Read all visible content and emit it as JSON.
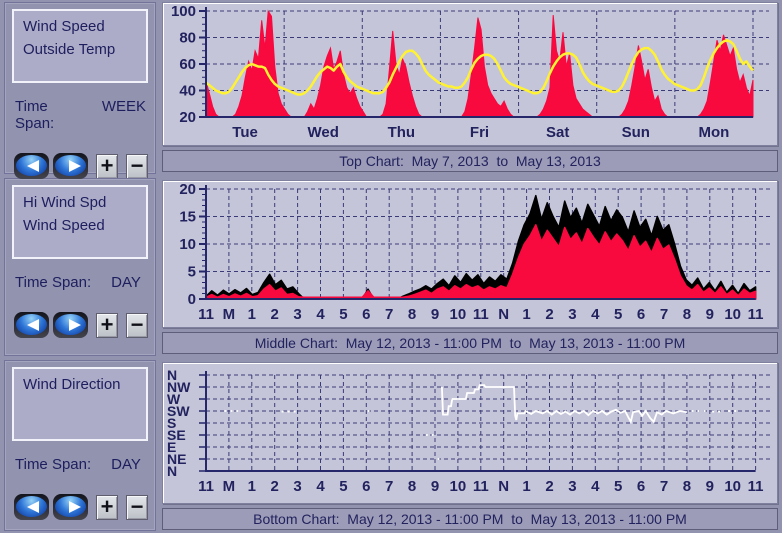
{
  "colors": {
    "window_bg": "#9193AF",
    "plot_bg": "#C5C5D9",
    "caption_bg": "#9C9CB8",
    "legend_box_bg": "#ACACC8",
    "text_navy": "#1E1E5E",
    "grid_navy": "#3A3A78",
    "series_red": "#F8093E",
    "series_yellow": "#FFF233",
    "series_black": "#000000",
    "series_white": "#FFFFFF"
  },
  "nav": {
    "back_icon": "triangle-left",
    "forward_icon": "triangle-right",
    "zoom_in_glyph": "+",
    "zoom_out_glyph": "−"
  },
  "panels": [
    {
      "legend_lines": [
        "Wind Speed",
        "Outside Temp"
      ],
      "time_span_label": "Time Span:",
      "time_span_value": "WEEK",
      "caption": "Top Chart:  May 7, 2013  to  May 13, 2013"
    },
    {
      "legend_lines": [
        "Hi Wind Spd",
        "Wind Speed"
      ],
      "time_span_label": "Time Span:",
      "time_span_value": "DAY",
      "caption": "Middle Chart:  May 12, 2013 - 11:00 PM  to  May 13, 2013 - 11:00 PM"
    },
    {
      "legend_lines": [
        "Wind Direction"
      ],
      "time_span_label": "Time Span:",
      "time_span_value": "DAY",
      "caption": "Bottom Chart:  May 12, 2013 - 11:00 PM  to  May 13, 2013 - 11:00 PM"
    }
  ],
  "chart_data": [
    {
      "type": "area",
      "title": "Top Chart: May 7, 2013 to May 13, 2013",
      "ylim": [
        20,
        100
      ],
      "y_ticks": [
        20,
        40,
        60,
        80,
        100
      ],
      "x_labels": [
        "Tue",
        "Wed",
        "Thu",
        "Fri",
        "Sat",
        "Sun",
        "Mon"
      ],
      "samples_per_day": 24,
      "grid": "dashed",
      "series": [
        {
          "name": "Wind Speed",
          "style": "area",
          "color": "#F8093E",
          "values": [
            47,
            38,
            28,
            22,
            20,
            20,
            20,
            20,
            20,
            22,
            28,
            36,
            50,
            62,
            55,
            70,
            64,
            93,
            72,
            100,
            96,
            58,
            38,
            30,
            26,
            22,
            20,
            20,
            20,
            20,
            20,
            24,
            30,
            26,
            34,
            44,
            58,
            66,
            72,
            56,
            62,
            70,
            52,
            42,
            38,
            42,
            34,
            28,
            24,
            20,
            20,
            20,
            20,
            20,
            22,
            30,
            56,
            85,
            60,
            52,
            64,
            58,
            46,
            36,
            28,
            22,
            20,
            20,
            20,
            20,
            20,
            20,
            20,
            20,
            20,
            20,
            20,
            20,
            20,
            24,
            34,
            52,
            72,
            95,
            86,
            58,
            44,
            38,
            34,
            30,
            28,
            32,
            26,
            22,
            20,
            20,
            20,
            20,
            20,
            20,
            20,
            20,
            22,
            26,
            32,
            42,
            97,
            70,
            62,
            84,
            58,
            68,
            44,
            34,
            30,
            26,
            24,
            22,
            20,
            20,
            20,
            20,
            20,
            20,
            20,
            20,
            20,
            22,
            26,
            32,
            44,
            58,
            74,
            62,
            48,
            56,
            42,
            32,
            36,
            26,
            22,
            20,
            20,
            20,
            20,
            20,
            20,
            20,
            20,
            20,
            20,
            22,
            26,
            32,
            46,
            62,
            78,
            70,
            82,
            74,
            66,
            72,
            56,
            46,
            52,
            42,
            36,
            48
          ]
        },
        {
          "name": "Outside Temp",
          "style": "line",
          "color": "#FFF233",
          "values": [
            46,
            44,
            42,
            40,
            39,
            38,
            38,
            39,
            42,
            46,
            50,
            54,
            57,
            59,
            60,
            59,
            58,
            58,
            57,
            52,
            48,
            45,
            43,
            42,
            41,
            40,
            39,
            38,
            37,
            37,
            38,
            40,
            43,
            47,
            51,
            54,
            56,
            58,
            57,
            55,
            58,
            60,
            54,
            50,
            47,
            45,
            43,
            42,
            41,
            40,
            39,
            38,
            38,
            38,
            39,
            42,
            46,
            52,
            57,
            62,
            66,
            69,
            70,
            70,
            68,
            65,
            60,
            55,
            52,
            50,
            48,
            46,
            45,
            44,
            43,
            43,
            42,
            42,
            43,
            46,
            50,
            56,
            61,
            64,
            66,
            67,
            67,
            66,
            64,
            60,
            55,
            50,
            47,
            45,
            44,
            43,
            42,
            41,
            40,
            39,
            38,
            38,
            39,
            42,
            47,
            53,
            58,
            62,
            65,
            67,
            68,
            68,
            67,
            65,
            60,
            54,
            50,
            47,
            45,
            44,
            43,
            42,
            41,
            40,
            39,
            39,
            40,
            43,
            48,
            54,
            60,
            65,
            69,
            71,
            72,
            72,
            70,
            67,
            62,
            56,
            52,
            49,
            47,
            45,
            44,
            43,
            42,
            41,
            40,
            40,
            41,
            44,
            50,
            57,
            63,
            68,
            72,
            75,
            77,
            78,
            77,
            75,
            70,
            64,
            60,
            62,
            58,
            55
          ]
        }
      ]
    },
    {
      "type": "area",
      "title": "Middle Chart: May 12, 2013 - 11:00 PM to May 13, 2013 - 11:00 PM",
      "ylim": [
        0,
        20
      ],
      "y_ticks": [
        0,
        5,
        10,
        15,
        20
      ],
      "x_labels": [
        "11",
        "M",
        "1",
        "2",
        "3",
        "4",
        "5",
        "6",
        "7",
        "8",
        "9",
        "10",
        "11",
        "N",
        "1",
        "2",
        "3",
        "4",
        "5",
        "6",
        "7",
        "8",
        "9",
        "10",
        "11"
      ],
      "sample_interval_min": 15,
      "grid": "dashed",
      "series": [
        {
          "name": "Hi Wind Spd",
          "style": "area",
          "color": "#000000",
          "values": [
            0.5,
            1.5,
            0.7,
            1.6,
            0.9,
            1.7,
            1.1,
            1.9,
            0.8,
            1.2,
            3.0,
            4.5,
            2.6,
            3.4,
            1.8,
            2.2,
            1.0,
            0,
            0,
            0,
            0,
            0,
            0,
            0,
            0,
            0,
            0,
            0,
            1.8,
            0,
            0,
            0,
            0,
            0,
            0.5,
            0.9,
            1.4,
            1.8,
            2.4,
            1.8,
            2.8,
            3.6,
            2.4,
            4.2,
            3.0,
            4.6,
            3.4,
            4.4,
            2.8,
            4.0,
            3.2,
            4.4,
            3.6,
            6.5,
            10.5,
            13.5,
            15.5,
            18.8,
            14.5,
            17.5,
            15.0,
            13.0,
            17.8,
            14.8,
            16.5,
            13.8,
            17.2,
            15.2,
            13.2,
            16.8,
            14.2,
            16.2,
            14.8,
            12.2,
            16.0,
            13.0,
            14.5,
            11.5,
            15.0,
            12.5,
            13.5,
            10.0,
            6.0,
            3.5,
            2.5,
            3.8,
            1.8,
            3.0,
            1.5,
            3.2,
            1.2,
            2.5,
            1.0,
            2.8,
            1.5,
            2.2
          ]
        },
        {
          "name": "Wind Speed",
          "style": "area",
          "color": "#F8093E",
          "values": [
            0.3,
            0.8,
            0.3,
            0.8,
            0.4,
            0.9,
            0.5,
            1.0,
            0.4,
            0.6,
            1.8,
            2.6,
            1.4,
            2.0,
            0.8,
            1.0,
            0.4,
            0.3,
            0.3,
            0.3,
            0.3,
            0.3,
            0.3,
            0.3,
            0.3,
            0.3,
            0.3,
            0.3,
            1.5,
            0.3,
            0.3,
            0.3,
            0.3,
            0.3,
            0.3,
            0.5,
            0.8,
            1.2,
            1.6,
            1.0,
            1.8,
            2.2,
            1.4,
            2.4,
            1.8,
            2.6,
            2.0,
            2.4,
            1.6,
            2.2,
            1.8,
            2.4,
            2.0,
            4.5,
            7.5,
            10.0,
            11.5,
            13.5,
            10.5,
            12.5,
            11.0,
            9.5,
            13.0,
            10.8,
            12.0,
            10.0,
            12.8,
            11.2,
            9.8,
            12.2,
            10.4,
            11.8,
            10.6,
            8.8,
            11.5,
            9.4,
            10.5,
            8.4,
            11.0,
            9.0,
            9.8,
            7.2,
            4.2,
            2.4,
            1.6,
            2.6,
            1.2,
            2.0,
            1.0,
            2.2,
            0.8,
            1.6,
            0.6,
            1.8,
            1.0,
            1.4
          ]
        }
      ]
    },
    {
      "type": "line",
      "title": "Bottom Chart: May 12, 2013 - 11:00 PM to May 13, 2013 - 11:00 PM",
      "y_labels": [
        "N",
        "NW",
        "W",
        "SW",
        "S",
        "SE",
        "E",
        "NE",
        "N"
      ],
      "x_labels": [
        "11",
        "M",
        "1",
        "2",
        "3",
        "4",
        "5",
        "6",
        "7",
        "8",
        "9",
        "10",
        "11",
        "N",
        "1",
        "2",
        "3",
        "4",
        "5",
        "6",
        "7",
        "8",
        "9",
        "10",
        "11"
      ],
      "x_unit_hours": 24,
      "grid": "dashed",
      "series": [
        {
          "name": "Wind Direction",
          "color": "#FFFFFF",
          "segments": [
            {
              "style": "dotted",
              "points": [
                [
                  0.8,
                  3
                ],
                [
                  1.4,
                  3
                ]
              ]
            },
            {
              "style": "dotted",
              "points": [
                [
                  3.3,
                  3.05
                ],
                [
                  4.05,
                  3.05
                ]
              ]
            },
            {
              "style": "dotted",
              "points": [
                [
                  7.05,
                  3
                ],
                [
                  7.3,
                  3
                ]
              ]
            },
            {
              "style": "dotted",
              "points": [
                [
                  9.6,
                  5
                ],
                [
                  10.0,
                  5
                ]
              ]
            },
            {
              "style": "dotted",
              "points": [
                [
                  10.1,
                  7
                ],
                [
                  10.3,
                  7
                ]
              ]
            },
            {
              "style": "solid",
              "points": [
                [
                  10.3,
                  1.0
                ],
                [
                  10.35,
                  3.3
                ],
                [
                  10.55,
                  3.3
                ],
                [
                  10.6,
                  2.6
                ],
                [
                  10.7,
                  2.6
                ],
                [
                  10.75,
                  2.0
                ],
                [
                  11.35,
                  2.0
                ],
                [
                  11.4,
                  1.5
                ],
                [
                  11.7,
                  1.5
                ],
                [
                  11.75,
                  1.2
                ],
                [
                  11.9,
                  1.2
                ],
                [
                  11.95,
                  0.85
                ],
                [
                  12.15,
                  0.85
                ],
                [
                  12.2,
                  1.0
                ],
                [
                  13.45,
                  1.0
                ],
                [
                  13.5,
                  3.4
                ],
                [
                  13.55,
                  3.75
                ],
                [
                  13.6,
                  3.2
                ],
                [
                  13.9,
                  3.2
                ],
                [
                  13.95,
                  3.0
                ],
                [
                  14.2,
                  3.25
                ],
                [
                  14.4,
                  3.0
                ],
                [
                  14.7,
                  3.2
                ],
                [
                  14.9,
                  3.0
                ],
                [
                  15.1,
                  3.3
                ],
                [
                  15.3,
                  3.0
                ],
                [
                  15.5,
                  3.25
                ],
                [
                  15.7,
                  3.05
                ],
                [
                  15.9,
                  3.3
                ],
                [
                  16.1,
                  3.0
                ],
                [
                  16.3,
                  3.2
                ],
                [
                  16.5,
                  3.0
                ],
                [
                  16.7,
                  3.35
                ],
                [
                  16.9,
                  3.0
                ],
                [
                  17.1,
                  3.2
                ],
                [
                  17.3,
                  3.0
                ],
                [
                  17.5,
                  3.3
                ],
                [
                  17.7,
                  3.05
                ],
                [
                  17.9,
                  2.9
                ],
                [
                  18.1,
                  3.15
                ],
                [
                  18.3,
                  3.0
                ],
                [
                  18.45,
                  3.55
                ],
                [
                  18.55,
                  3.9
                ],
                [
                  18.65,
                  3.1
                ],
                [
                  18.9,
                  3.0
                ],
                [
                  19.05,
                  3.4
                ],
                [
                  19.2,
                  3.0
                ],
                [
                  19.4,
                  3.6
                ],
                [
                  19.55,
                  3.9
                ],
                [
                  19.7,
                  3.1
                ],
                [
                  19.9,
                  3.3
                ],
                [
                  20.1,
                  3.0
                ],
                [
                  20.4,
                  3.2
                ],
                [
                  20.7,
                  3.0
                ],
                [
                  21.0,
                  3.1
                ]
              ]
            },
            {
              "style": "dotted",
              "points": [
                [
                  21.2,
                  3.0
                ],
                [
                  21.9,
                  3.0
                ]
              ]
            },
            {
              "style": "dotted",
              "points": [
                [
                  22.1,
                  3.05
                ],
                [
                  22.6,
                  3.05
                ]
              ]
            },
            {
              "style": "dotted",
              "points": [
                [
                  22.8,
                  3.0
                ],
                [
                  23.2,
                  3.0
                ]
              ]
            }
          ]
        }
      ]
    }
  ]
}
